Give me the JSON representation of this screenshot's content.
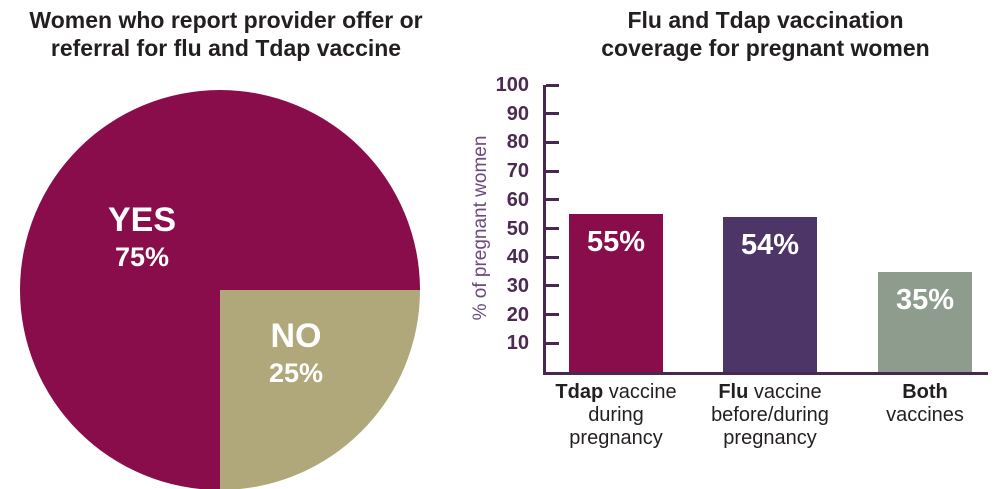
{
  "accent_colors": {
    "maroon": "#890c4b",
    "purple": "#4d3567",
    "sage": "#8e9c8e",
    "tan": "#b0a87a",
    "axis_purple": "#47294f",
    "tick_label_purple": "#4c2a52",
    "y_title_purple": "#6a4b7d",
    "title_ink": "#231f20"
  },
  "chart_data": [
    {
      "type": "pie",
      "title": "Women who report provider offer or referral for flu and Tdap vaccine",
      "title_lines": [
        "Women who report provider offer or",
        "referral for flu and Tdap vaccine"
      ],
      "rotation_deg": 180,
      "slices": [
        {
          "label": "YES",
          "value": 75,
          "pct_label": "75%",
          "color": "#890c4b",
          "text_color": "#ffffff"
        },
        {
          "label": "NO",
          "value": 25,
          "pct_label": "25%",
          "color": "#b0a87a",
          "text_color": "#ffffff"
        }
      ]
    },
    {
      "type": "bar",
      "title": "Flu and Tdap vaccination coverage for pregnant women",
      "title_lines": [
        "Flu and Tdap vaccination",
        "coverage for pregnant women"
      ],
      "ylabel": "% of pregnant women",
      "xlabel": "",
      "ylim": [
        0,
        100
      ],
      "yticks": [
        10,
        20,
        30,
        40,
        50,
        60,
        70,
        80,
        90,
        100
      ],
      "grid": false,
      "legend": "none",
      "values": [
        55,
        54,
        35
      ],
      "bar_labels": [
        "55%",
        "54%",
        "35%"
      ],
      "bar_colors": [
        "#890c4b",
        "#4d3567",
        "#8e9c8e"
      ],
      "categories": [
        {
          "label": "Tdap vaccine during pregnancy",
          "lines": [
            [
              {
                "text": "Tdap",
                "bold": true
              },
              {
                "text": " vaccine",
                "bold": false
              }
            ],
            [
              {
                "text": "during",
                "bold": false
              }
            ],
            [
              {
                "text": "pregnancy",
                "bold": false
              }
            ]
          ]
        },
        {
          "label": "Flu vaccine before/during pregnancy",
          "lines": [
            [
              {
                "text": "Flu",
                "bold": true
              },
              {
                "text": " vaccine",
                "bold": false
              }
            ],
            [
              {
                "text": "before/during",
                "bold": false
              }
            ],
            [
              {
                "text": "pregnancy",
                "bold": false
              }
            ]
          ]
        },
        {
          "label": "Both vaccines",
          "lines": [
            [
              {
                "text": "Both",
                "bold": true
              }
            ],
            [
              {
                "text": "vaccines",
                "bold": false
              }
            ]
          ]
        }
      ]
    }
  ]
}
